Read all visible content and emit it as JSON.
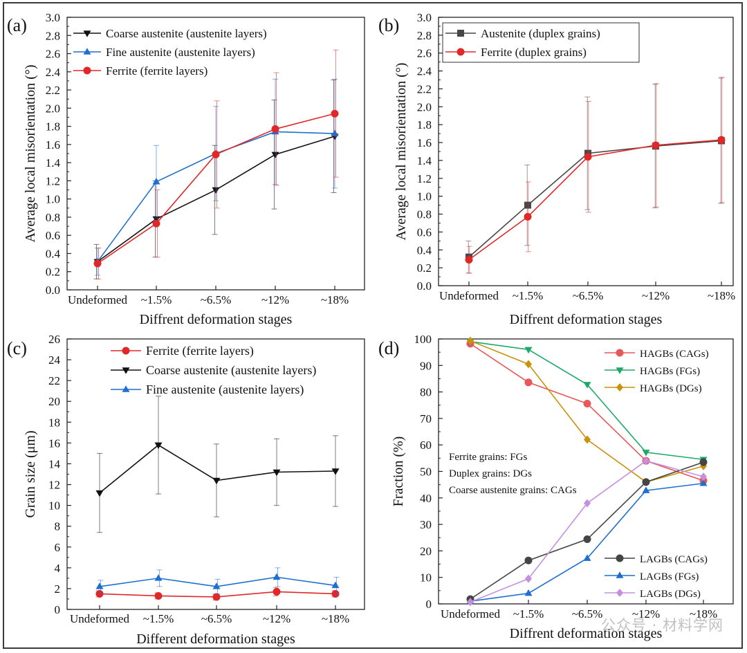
{
  "watermark": "公众号 · 材料学网",
  "colors": {
    "black": "#111111",
    "blue": "#1f6fd0",
    "red": "#e02828",
    "dark_gray": "#474747",
    "salmon": "#e8575a",
    "green": "#1ea86a",
    "gold": "#c8920b",
    "gray": "#454545",
    "violet": "#c58fe0"
  },
  "chart_data": [
    {
      "id": "a",
      "panel_label": "(a)",
      "type": "line",
      "categories": [
        "Undeformed",
        "~1.5%",
        "~6.5%",
        "~12%",
        "~18%"
      ],
      "xlabel": "Diffrent deformation stages",
      "ylabel": "Average local misorientation (°)",
      "ylim": [
        0,
        3.0
      ],
      "yticks": [
        "0.0",
        "0.2",
        "0.4",
        "0.6",
        "0.8",
        "1.0",
        "1.2",
        "1.4",
        "1.6",
        "1.8",
        "2.0",
        "2.2",
        "2.4",
        "2.6",
        "2.8",
        "3.0"
      ],
      "grid": false,
      "legend_position": "top-left",
      "series": [
        {
          "name": "Coarse austenite (austenite layers)",
          "color": "#111111",
          "marker": "triangle-down",
          "values": [
            0.31,
            0.78,
            1.1,
            1.49,
            1.69
          ],
          "err": [
            0.19,
            0.42,
            0.49,
            0.6,
            0.62
          ]
        },
        {
          "name": "Fine austenite (austenite layers)",
          "color": "#1f6fd0",
          "marker": "triangle-up",
          "values": [
            0.31,
            1.19,
            1.5,
            1.74,
            1.72
          ],
          "err": [
            0.15,
            0.4,
            0.52,
            0.58,
            0.6
          ]
        },
        {
          "name": "Ferrite (ferrite layers)",
          "color": "#e02828",
          "marker": "circle",
          "values": [
            0.29,
            0.73,
            1.49,
            1.77,
            1.94
          ],
          "err": [
            0.17,
            0.37,
            0.59,
            0.62,
            0.7
          ]
        }
      ]
    },
    {
      "id": "b",
      "panel_label": "(b)",
      "type": "line",
      "categories": [
        "Undeformed",
        "~1.5%",
        "~6.5%",
        "~12%",
        "~18%"
      ],
      "xlabel": "Diffrent deformation stages",
      "ylabel": "Average local misorientation (°)",
      "ylim": [
        0,
        3.0
      ],
      "yticks": [
        "0.0",
        "0.2",
        "0.4",
        "0.6",
        "0.8",
        "1.0",
        "1.2",
        "1.4",
        "1.6",
        "1.8",
        "2.0",
        "2.2",
        "2.4",
        "2.6",
        "2.8",
        "3.0"
      ],
      "grid": false,
      "legend_position": "top-left",
      "series": [
        {
          "name": "Austenite (duplex grains)",
          "color": "#474747",
          "marker": "square",
          "values": [
            0.32,
            0.9,
            1.48,
            1.56,
            1.62
          ],
          "err": [
            0.18,
            0.45,
            0.63,
            0.69,
            0.7
          ]
        },
        {
          "name": "Ferrite (duplex grains)",
          "color": "#e02828",
          "marker": "circle",
          "values": [
            0.29,
            0.77,
            1.44,
            1.57,
            1.63
          ],
          "err": [
            0.15,
            0.39,
            0.62,
            0.69,
            0.7
          ]
        }
      ]
    },
    {
      "id": "c",
      "panel_label": "(c)",
      "type": "line",
      "categories": [
        "Undeformed",
        "~1.5%",
        "~6.5%",
        "~12%",
        "~18%"
      ],
      "xlabel": "Different deformation stages",
      "ylabel": "Grain size (μm)",
      "ylim": [
        0,
        26
      ],
      "yticks": [
        "0",
        "2",
        "4",
        "6",
        "8",
        "10",
        "12",
        "14",
        "16",
        "18",
        "20",
        "22",
        "24",
        "26"
      ],
      "grid": false,
      "legend_position": "top-right",
      "series": [
        {
          "name": "Ferrite (ferrite layers)",
          "color": "#e02828",
          "marker": "circle",
          "values": [
            1.5,
            1.3,
            1.2,
            1.7,
            1.5
          ],
          "err": [
            0.3,
            0.3,
            0.3,
            0.4,
            0.3
          ]
        },
        {
          "name": "Coarse austenite (austenite layers)",
          "color": "#111111",
          "marker": "triangle-down",
          "values": [
            11.2,
            15.8,
            12.4,
            13.2,
            13.3
          ],
          "err": [
            3.8,
            4.7,
            3.5,
            3.2,
            3.4
          ]
        },
        {
          "name": "Fine austenite (austenite layers)",
          "color": "#1f6fd0",
          "marker": "triangle-up",
          "values": [
            2.2,
            3.0,
            2.2,
            3.1,
            2.3
          ],
          "err": [
            0.6,
            0.8,
            0.7,
            0.9,
            0.8
          ]
        }
      ]
    },
    {
      "id": "d",
      "panel_label": "(d)",
      "type": "line",
      "categories": [
        "Undeformed",
        "~1.5%",
        "~6.5%",
        "~12%",
        "~18%"
      ],
      "xlabel": "Diffrent deformation stages",
      "ylabel": "Fraction (%)",
      "ylim": [
        0,
        100
      ],
      "yticks": [
        "0",
        "10",
        "20",
        "30",
        "40",
        "50",
        "60",
        "70",
        "80",
        "90",
        "100"
      ],
      "grid": false,
      "legend_position": "top-right and bottom-right",
      "annotations": [
        "Ferrite grains: FGs",
        "Duplex grains: DGs",
        "Coarse austenite grains: CAGs"
      ],
      "series": [
        {
          "name": "HAGBs (CAGs)",
          "color": "#e8575a",
          "marker": "circle",
          "values": [
            98.2,
            83.6,
            75.6,
            54.0,
            46.5
          ]
        },
        {
          "name": "HAGBs (FGs)",
          "color": "#1ea86a",
          "marker": "triangle-down",
          "values": [
            99.0,
            96.0,
            82.8,
            57.2,
            54.5
          ]
        },
        {
          "name": "HAGBs (DGs)",
          "color": "#c8920b",
          "marker": "diamond",
          "values": [
            99.3,
            90.5,
            62.0,
            46.0,
            52.0
          ]
        },
        {
          "name": "LAGBs (CAGs)",
          "color": "#454545",
          "marker": "circle",
          "values": [
            1.8,
            16.4,
            24.4,
            46.0,
            53.5
          ]
        },
        {
          "name": "LAGBs (FGs)",
          "color": "#1f6fd0",
          "marker": "triangle-up",
          "values": [
            1.0,
            4.0,
            17.2,
            42.8,
            45.5
          ]
        },
        {
          "name": "LAGBs (DGs)",
          "color": "#c58fe0",
          "marker": "diamond",
          "values": [
            0.7,
            9.5,
            38.0,
            54.0,
            48.0
          ]
        }
      ]
    }
  ]
}
